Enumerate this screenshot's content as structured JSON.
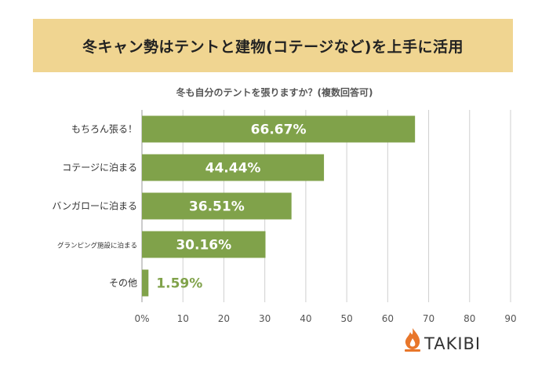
{
  "banner": {
    "title": "冬キャン勢はテントと建物(コテージなど)を上手に活用"
  },
  "chart_data": {
    "type": "bar",
    "orientation": "horizontal",
    "title": "冬も自分のテントを張りますか？(複数回答可)",
    "categories": [
      "もちろん張る！",
      "コテージに泊まる",
      "バンガローに泊まる",
      "グランピング施設に泊まる",
      "その他"
    ],
    "values": [
      66.67,
      44.44,
      36.51,
      30.16,
      1.59
    ],
    "data_labels": [
      "66.67%",
      "44.44%",
      "36.51%",
      "30.16%",
      "1.59%"
    ],
    "x_ticks": [
      "0%",
      "10",
      "20",
      "30",
      "40",
      "50",
      "60",
      "70",
      "80",
      "90"
    ],
    "xlim": [
      0,
      90
    ],
    "grid": "vertical",
    "bar_color": "#80a24a",
    "label_color_inside": "#ffffff",
    "label_color_outside": "#80a24a"
  },
  "logo": {
    "text": "TAKIBI",
    "icon": "flame-icon",
    "icon_color": "#e8762a"
  }
}
